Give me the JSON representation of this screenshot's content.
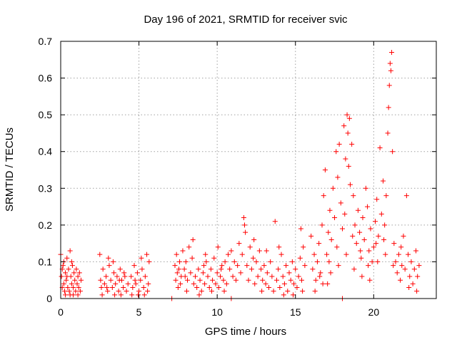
{
  "chart_data": {
    "type": "scatter",
    "title": "Day 196 of 2021, SRMTID for receiver svic",
    "xlabel": "GPS time / hours",
    "ylabel": "SRMTID / TECUs",
    "xlim": [
      0,
      24
    ],
    "ylim": [
      0,
      0.7
    ],
    "xticks": [
      0,
      5,
      10,
      15,
      20
    ],
    "xtick_labels": [
      "0",
      "5",
      "10",
      "15",
      "20"
    ],
    "yticks": [
      0,
      0.1,
      0.2,
      0.3,
      0.4,
      0.5,
      0.6,
      0.7
    ],
    "ytick_labels": [
      "0",
      "0.1",
      "0.2",
      "0.3",
      "0.4",
      "0.5",
      "0.6",
      "0.7"
    ],
    "grid": true,
    "marker": "+",
    "color": "#ff0000",
    "series": [
      {
        "name": "SRMTID",
        "points": [
          [
            0.0,
            0.12
          ],
          [
            0.05,
            0.06
          ],
          [
            0.1,
            0.03
          ],
          [
            0.15,
            0.09
          ],
          [
            0.2,
            0.04
          ],
          [
            0.25,
            0.02
          ],
          [
            0.3,
            0.07
          ],
          [
            0.35,
            0.05
          ],
          [
            0.4,
            0.11
          ],
          [
            0.45,
            0.03
          ],
          [
            0.5,
            0.08
          ],
          [
            0.55,
            0.02
          ],
          [
            0.6,
            0.13
          ],
          [
            0.65,
            0.06
          ],
          [
            0.7,
            0.04
          ],
          [
            0.75,
            0.09
          ],
          [
            0.8,
            0.03
          ],
          [
            0.85,
            0.07
          ],
          [
            0.9,
            0.05
          ],
          [
            0.95,
            0.02
          ],
          [
            1.0,
            0.08
          ],
          [
            1.05,
            0.04
          ],
          [
            1.1,
            0.06
          ],
          [
            1.15,
            0.03
          ],
          [
            1.2,
            0.07
          ],
          [
            1.25,
            0.02
          ],
          [
            1.3,
            0.05
          ],
          [
            0.1,
            0.08
          ],
          [
            0.3,
            0.01
          ],
          [
            0.6,
            0.01
          ],
          [
            0.2,
            0.1
          ],
          [
            0.8,
            0.01
          ],
          [
            1.1,
            0.01
          ],
          [
            0.4,
            0.06
          ],
          [
            0.7,
            0.1
          ],
          [
            2.5,
            0.12
          ],
          [
            2.55,
            0.05
          ],
          [
            2.6,
            0.03
          ],
          [
            2.7,
            0.08
          ],
          [
            2.8,
            0.04
          ],
          [
            2.9,
            0.06
          ],
          [
            3.0,
            0.02
          ],
          [
            3.1,
            0.09
          ],
          [
            3.2,
            0.05
          ],
          [
            3.3,
            0.03
          ],
          [
            3.4,
            0.07
          ],
          [
            3.5,
            0.04
          ],
          [
            3.6,
            0.06
          ],
          [
            3.7,
            0.02
          ],
          [
            3.8,
            0.08
          ],
          [
            3.9,
            0.05
          ],
          [
            4.0,
            0.03
          ],
          [
            4.1,
            0.06
          ],
          [
            4.2,
            0.02
          ],
          [
            4.3,
            0.04
          ],
          [
            2.65,
            0.01
          ],
          [
            3.05,
            0.11
          ],
          [
            3.45,
            0.01
          ],
          [
            3.85,
            0.01
          ],
          [
            4.05,
            0.07
          ],
          [
            2.95,
            0.03
          ],
          [
            3.35,
            0.1
          ],
          [
            3.75,
            0.05
          ],
          [
            4.5,
            0.06
          ],
          [
            4.6,
            0.03
          ],
          [
            4.7,
            0.09
          ],
          [
            4.8,
            0.04
          ],
          [
            4.9,
            0.07
          ],
          [
            5.0,
            0.02
          ],
          [
            5.1,
            0.05
          ],
          [
            5.2,
            0.08
          ],
          [
            5.3,
            0.03
          ],
          [
            5.4,
            0.06
          ],
          [
            5.5,
            0.12
          ],
          [
            5.6,
            0.04
          ],
          [
            5.65,
            0.1
          ],
          [
            4.55,
            0.01
          ],
          [
            4.95,
            0.01
          ],
          [
            5.35,
            0.01
          ],
          [
            5.55,
            0.02
          ],
          [
            4.75,
            0.05
          ],
          [
            5.15,
            0.11
          ],
          [
            7.1,
            0.0
          ],
          [
            7.3,
            0.09
          ],
          [
            7.35,
            0.05
          ],
          [
            7.4,
            0.12
          ],
          [
            7.45,
            0.07
          ],
          [
            7.5,
            0.03
          ],
          [
            7.55,
            0.08
          ],
          [
            7.6,
            0.1
          ],
          [
            7.65,
            0.04
          ],
          [
            7.7,
            0.06
          ],
          [
            7.8,
            0.13
          ],
          [
            7.9,
            0.08
          ],
          [
            8.0,
            0.1
          ],
          [
            8.1,
            0.05
          ],
          [
            8.2,
            0.14
          ],
          [
            8.3,
            0.07
          ],
          [
            8.4,
            0.11
          ],
          [
            8.5,
            0.04
          ],
          [
            8.6,
            0.06
          ],
          [
            8.7,
            0.03
          ],
          [
            8.8,
            0.08
          ],
          [
            8.9,
            0.05
          ],
          [
            9.0,
            0.02
          ],
          [
            9.1,
            0.07
          ],
          [
            9.2,
            0.04
          ],
          [
            9.3,
            0.1
          ],
          [
            9.4,
            0.06
          ],
          [
            9.5,
            0.03
          ],
          [
            9.6,
            0.08
          ],
          [
            9.7,
            0.05
          ],
          [
            9.8,
            0.11
          ],
          [
            9.9,
            0.04
          ],
          [
            10.0,
            0.07
          ],
          [
            10.1,
            0.03
          ],
          [
            10.2,
            0.06
          ],
          [
            10.3,
            0.09
          ],
          [
            10.4,
            0.05
          ],
          [
            10.5,
            0.1
          ],
          [
            10.6,
            0.04
          ],
          [
            10.7,
            0.12
          ],
          [
            8.05,
            0.02
          ],
          [
            8.45,
            0.16
          ],
          [
            8.85,
            0.01
          ],
          [
            9.25,
            0.12
          ],
          [
            9.65,
            0.02
          ],
          [
            10.05,
            0.14
          ],
          [
            10.45,
            0.02
          ],
          [
            7.95,
            0.06
          ],
          [
            9.15,
            0.09
          ],
          [
            10.25,
            0.08
          ],
          [
            10.9,
            0.0
          ],
          [
            10.8,
            0.08
          ],
          [
            10.9,
            0.13
          ],
          [
            11.0,
            0.06
          ],
          [
            11.1,
            0.1
          ],
          [
            11.2,
            0.05
          ],
          [
            11.3,
            0.09
          ],
          [
            11.4,
            0.15
          ],
          [
            11.5,
            0.07
          ],
          [
            11.6,
            0.12
          ],
          [
            11.7,
            0.22
          ],
          [
            11.8,
            0.18
          ],
          [
            11.9,
            0.09
          ],
          [
            12.0,
            0.05
          ],
          [
            12.1,
            0.14
          ],
          [
            12.2,
            0.08
          ],
          [
            12.3,
            0.11
          ],
          [
            12.4,
            0.04
          ],
          [
            12.5,
            0.1
          ],
          [
            12.6,
            0.06
          ],
          [
            12.7,
            0.13
          ],
          [
            12.8,
            0.08
          ],
          [
            12.9,
            0.05
          ],
          [
            13.0,
            0.09
          ],
          [
            13.1,
            0.04
          ],
          [
            13.2,
            0.07
          ],
          [
            13.3,
            0.03
          ],
          [
            13.4,
            0.1
          ],
          [
            13.5,
            0.06
          ],
          [
            13.6,
            0.02
          ],
          [
            13.7,
            0.21
          ],
          [
            13.8,
            0.05
          ],
          [
            13.9,
            0.08
          ],
          [
            14.0,
            0.03
          ],
          [
            14.1,
            0.12
          ],
          [
            14.2,
            0.06
          ],
          [
            14.3,
            0.04
          ],
          [
            14.4,
            0.09
          ],
          [
            14.5,
            0.02
          ],
          [
            14.6,
            0.07
          ],
          [
            14.7,
            0.05
          ],
          [
            14.8,
            0.1
          ],
          [
            14.9,
            0.04
          ],
          [
            15.0,
            0.08
          ],
          [
            15.1,
            0.03
          ],
          [
            15.2,
            0.06
          ],
          [
            15.3,
            0.11
          ],
          [
            15.4,
            0.05
          ],
          [
            15.5,
            0.14
          ],
          [
            15.6,
            0.09
          ],
          [
            15.35,
            0.19
          ],
          [
            11.75,
            0.2
          ],
          [
            12.35,
            0.16
          ],
          [
            13.15,
            0.13
          ],
          [
            14.25,
            0.01
          ],
          [
            14.85,
            0.01
          ],
          [
            15.45,
            0.02
          ],
          [
            13.95,
            0.14
          ],
          [
            12.85,
            0.02
          ],
          [
            16.0,
            0.17
          ],
          [
            16.1,
            0.08
          ],
          [
            16.2,
            0.12
          ],
          [
            16.3,
            0.05
          ],
          [
            16.4,
            0.1
          ],
          [
            16.5,
            0.15
          ],
          [
            16.6,
            0.07
          ],
          [
            16.7,
            0.2
          ],
          [
            16.8,
            0.28
          ],
          [
            16.9,
            0.35
          ],
          [
            17.0,
            0.12
          ],
          [
            17.1,
            0.18
          ],
          [
            17.2,
            0.24
          ],
          [
            17.3,
            0.16
          ],
          [
            17.4,
            0.3
          ],
          [
            17.5,
            0.22
          ],
          [
            17.6,
            0.4
          ],
          [
            17.7,
            0.33
          ],
          [
            17.8,
            0.42
          ],
          [
            17.9,
            0.26
          ],
          [
            18.0,
            0.19
          ],
          [
            18.1,
            0.47
          ],
          [
            18.2,
            0.38
          ],
          [
            18.3,
            0.5
          ],
          [
            18.35,
            0.45
          ],
          [
            18.4,
            0.36
          ],
          [
            18.45,
            0.49
          ],
          [
            18.5,
            0.31
          ],
          [
            18.6,
            0.42
          ],
          [
            18.7,
            0.28
          ],
          [
            18.8,
            0.2
          ],
          [
            18.9,
            0.15
          ],
          [
            19.0,
            0.24
          ],
          [
            19.1,
            0.18
          ],
          [
            19.2,
            0.11
          ],
          [
            19.3,
            0.22
          ],
          [
            19.4,
            0.16
          ],
          [
            19.5,
            0.3
          ],
          [
            19.6,
            0.25
          ],
          [
            19.7,
            0.13
          ],
          [
            19.8,
            0.19
          ],
          [
            19.9,
            0.1
          ],
          [
            20.0,
            0.14
          ],
          [
            20.1,
            0.21
          ],
          [
            20.2,
            0.27
          ],
          [
            20.3,
            0.17
          ],
          [
            20.4,
            0.41
          ],
          [
            20.5,
            0.23
          ],
          [
            20.6,
            0.32
          ],
          [
            20.7,
            0.2
          ],
          [
            20.8,
            0.28
          ],
          [
            20.9,
            0.45
          ],
          [
            20.95,
            0.52
          ],
          [
            21.0,
            0.58
          ],
          [
            21.05,
            0.64
          ],
          [
            21.1,
            0.62
          ],
          [
            21.15,
            0.67
          ],
          [
            21.2,
            0.4
          ],
          [
            21.3,
            0.15
          ],
          [
            21.4,
            0.1
          ],
          [
            21.5,
            0.07
          ],
          [
            21.6,
            0.12
          ],
          [
            21.7,
            0.05
          ],
          [
            21.8,
            0.09
          ],
          [
            21.9,
            0.17
          ],
          [
            22.0,
            0.08
          ],
          [
            22.1,
            0.28
          ],
          [
            22.2,
            0.12
          ],
          [
            22.3,
            0.06
          ],
          [
            22.4,
            0.1
          ],
          [
            22.5,
            0.04
          ],
          [
            22.6,
            0.08
          ],
          [
            22.7,
            0.13
          ],
          [
            22.8,
            0.06
          ],
          [
            22.9,
            0.09
          ],
          [
            16.25,
            0.02
          ],
          [
            16.75,
            0.04
          ],
          [
            17.25,
            0.07
          ],
          [
            17.75,
            0.09
          ],
          [
            18.25,
            0.12
          ],
          [
            18.75,
            0.08
          ],
          [
            19.25,
            0.06
          ],
          [
            19.75,
            0.05
          ],
          [
            20.25,
            0.1
          ],
          [
            20.75,
            0.12
          ],
          [
            17.15,
            0.1
          ],
          [
            17.65,
            0.14
          ],
          [
            18.15,
            0.23
          ],
          [
            18.65,
            0.17
          ],
          [
            19.15,
            0.13
          ],
          [
            19.65,
            0.09
          ],
          [
            20.15,
            0.15
          ],
          [
            20.65,
            0.16
          ],
          [
            21.25,
            0.09
          ],
          [
            21.75,
            0.14
          ],
          [
            22.25,
            0.03
          ],
          [
            22.75,
            0.02
          ],
          [
            18.0,
            0.0
          ],
          [
            17.05,
            0.04
          ],
          [
            16.55,
            0.06
          ]
        ]
      }
    ]
  }
}
